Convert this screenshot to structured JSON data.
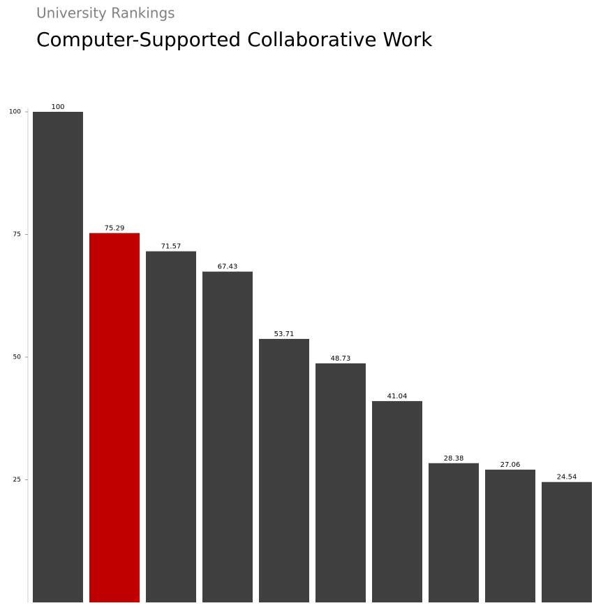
{
  "chart_data": {
    "type": "bar",
    "title": "University Rankings",
    "subtitle": "Computer-Supported Collaborative Work",
    "values": [
      100,
      75.29,
      71.57,
      67.43,
      53.71,
      48.73,
      41.04,
      28.38,
      27.06,
      24.54
    ],
    "colors": [
      "#404040",
      "#c00000",
      "#404040",
      "#404040",
      "#404040",
      "#404040",
      "#404040",
      "#404040",
      "#404040",
      "#404040"
    ],
    "ylim": [
      0,
      100
    ],
    "yticks": [
      25,
      50,
      75,
      100
    ],
    "grid": false
  }
}
